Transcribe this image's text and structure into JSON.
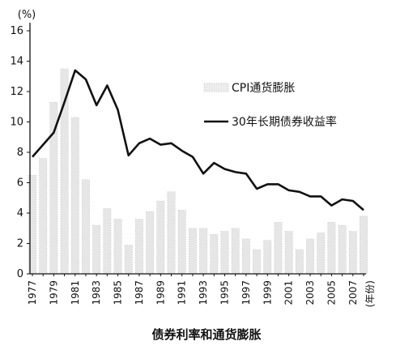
{
  "caption": "债券利率和通货膨胀",
  "chart_data": {
    "type": "line",
    "title": "",
    "ylabel": "(%)",
    "xlabel": "(年份)",
    "ylim": [
      0,
      16
    ],
    "y_ticks": [
      "0",
      "2",
      "4",
      "6",
      "8",
      "10",
      "12",
      "14",
      "16"
    ],
    "x_tick_labels": [
      "1977",
      "1979",
      "1981",
      "1983",
      "1985",
      "1987",
      "1989",
      "1991",
      "1993",
      "1995",
      "1997",
      "1999",
      "2001",
      "2003",
      "2005",
      "2007"
    ],
    "x": [
      1977,
      1978,
      1979,
      1980,
      1981,
      1982,
      1983,
      1984,
      1985,
      1986,
      1987,
      1988,
      1989,
      1990,
      1991,
      1992,
      1993,
      1994,
      1995,
      1996,
      1997,
      1998,
      1999,
      2000,
      2001,
      2002,
      2003,
      2004,
      2005,
      2006,
      2007,
      2008
    ],
    "legend_position": "center-right",
    "grid": false,
    "series": [
      {
        "name": "CPI通货膨胀",
        "style": "faint-bars",
        "color": "#c8c8c8",
        "values": [
          6.5,
          7.6,
          11.3,
          13.5,
          10.3,
          6.2,
          3.2,
          4.3,
          3.6,
          1.9,
          3.6,
          4.1,
          4.8,
          5.4,
          4.2,
          3.0,
          3.0,
          2.6,
          2.8,
          3.0,
          2.3,
          1.6,
          2.2,
          3.4,
          2.8,
          1.6,
          2.3,
          2.7,
          3.4,
          3.2,
          2.8,
          3.8
        ]
      },
      {
        "name": "30年长期债券收益率",
        "style": "line",
        "color": "#111111",
        "values": [
          7.7,
          8.5,
          9.3,
          11.3,
          13.4,
          12.8,
          11.1,
          12.4,
          10.8,
          7.8,
          8.6,
          8.9,
          8.5,
          8.6,
          8.1,
          7.7,
          6.6,
          7.3,
          6.9,
          6.7,
          6.6,
          5.6,
          5.9,
          5.9,
          5.5,
          5.4,
          5.1,
          5.1,
          4.5,
          4.9,
          4.8,
          4.2
        ]
      }
    ]
  }
}
